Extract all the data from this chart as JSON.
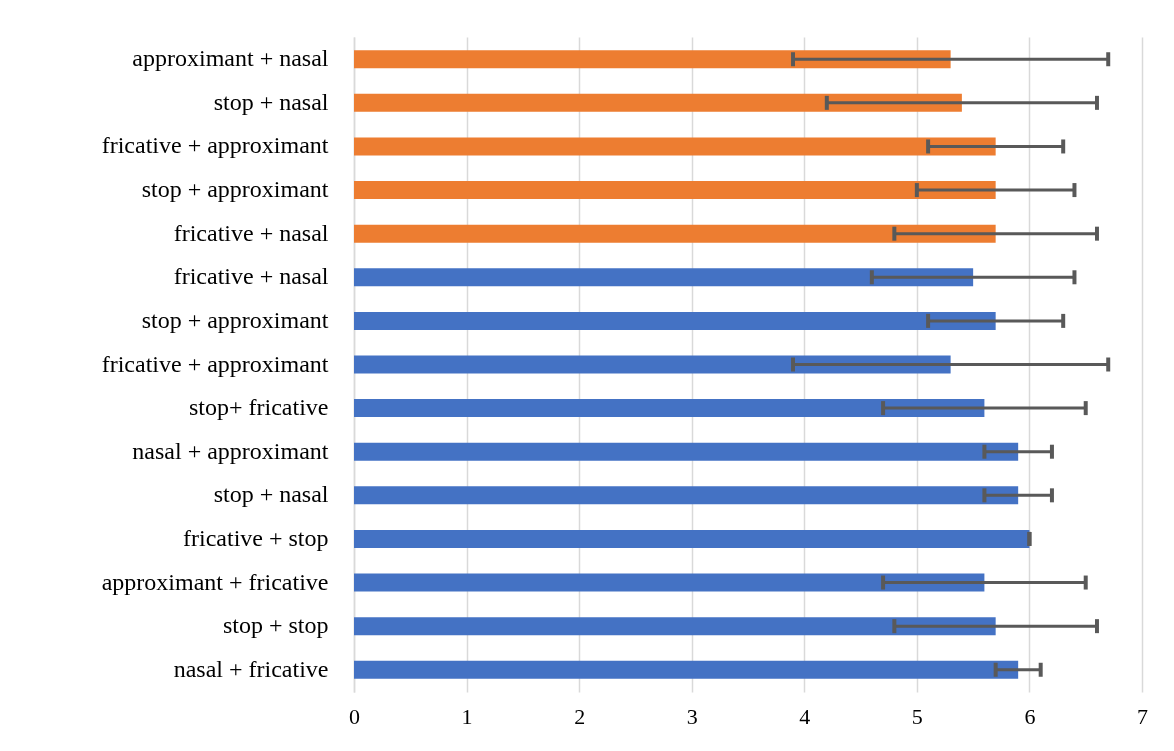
{
  "chart_data": {
    "type": "bar",
    "orientation": "horizontal",
    "categories": [
      "approximant + nasal",
      "stop + nasal",
      "fricative + approximant",
      "stop + approximant",
      "fricative + nasal",
      "fricative + nasal",
      "stop + approximant",
      "fricative + approximant",
      "stop+ fricative",
      "nasal + approximant",
      "stop + nasal",
      "fricative + stop",
      "approximant + fricative",
      "stop + stop",
      "nasal + fricative"
    ],
    "values": [
      5.3,
      5.4,
      5.7,
      5.7,
      5.7,
      5.5,
      5.7,
      5.3,
      5.6,
      5.9,
      5.9,
      6.0,
      5.6,
      5.7,
      5.9
    ],
    "errors": [
      1.4,
      1.2,
      0.6,
      0.7,
      0.9,
      0.9,
      0.6,
      1.4,
      0.9,
      0.3,
      0.3,
      0,
      0.9,
      0.9,
      0.2
    ],
    "colors": [
      "#ed7d31",
      "#ed7d31",
      "#ed7d31",
      "#ed7d31",
      "#ed7d31",
      "#4472c4",
      "#4472c4",
      "#4472c4",
      "#4472c4",
      "#4472c4",
      "#4472c4",
      "#4472c4",
      "#4472c4",
      "#4472c4",
      "#4472c4"
    ],
    "xlim": [
      0,
      7
    ],
    "xticks": [
      0,
      1,
      2,
      3,
      4,
      5,
      6,
      7
    ],
    "grid": "x"
  }
}
